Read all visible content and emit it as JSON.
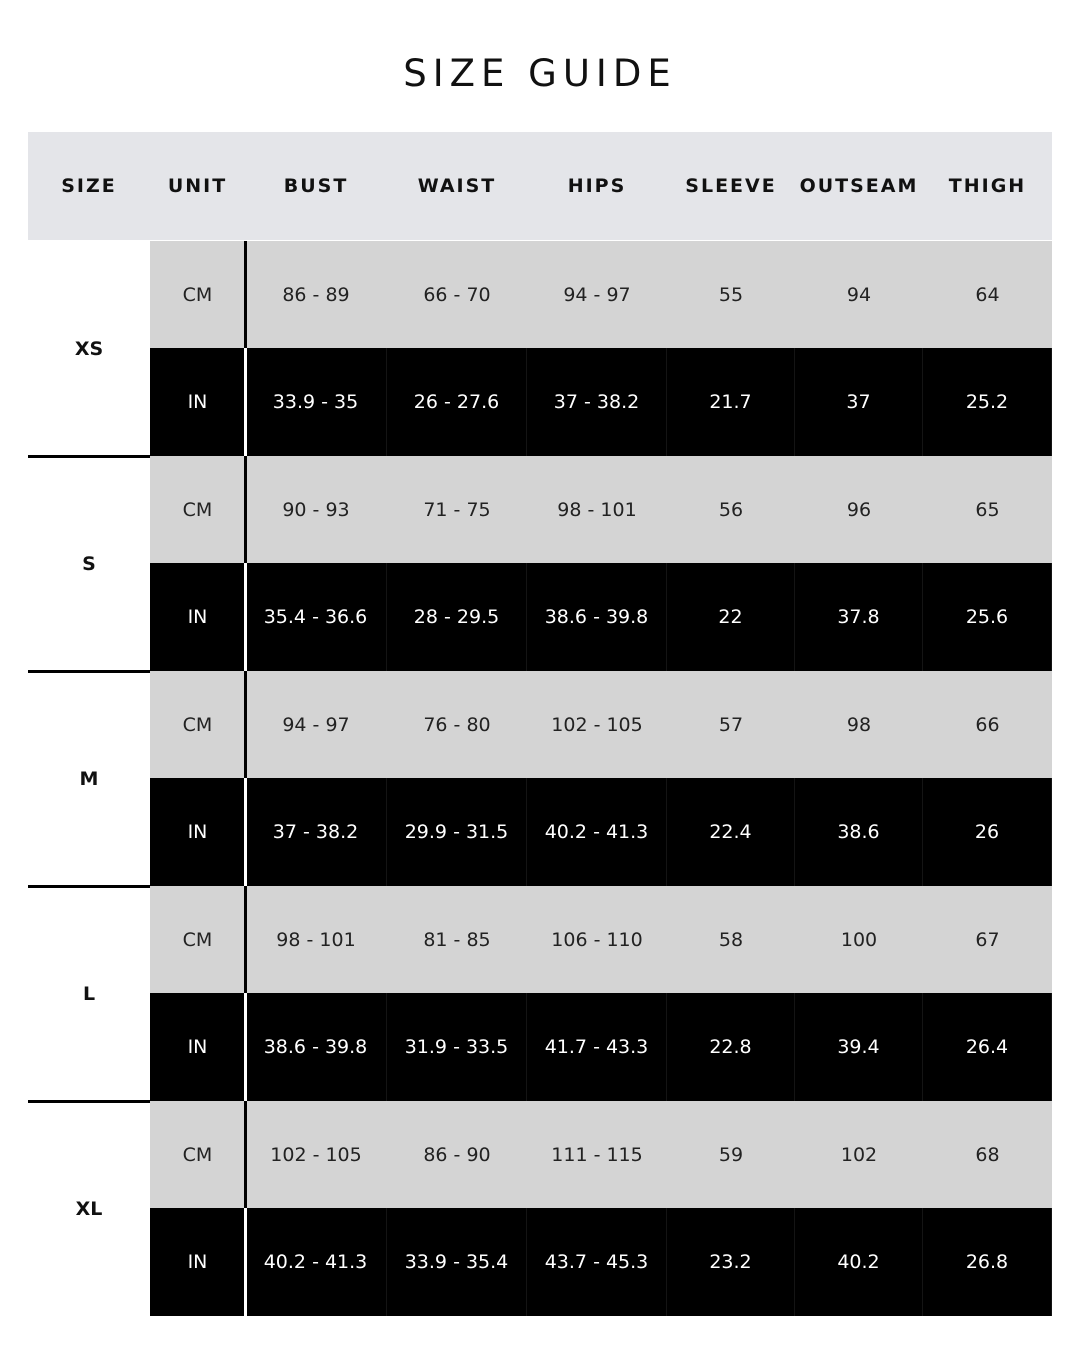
{
  "title": "SIZE GUIDE",
  "columns": [
    "SIZE",
    "UNIT",
    "BUST",
    "WAIST",
    "HIPS",
    "SLEEVE",
    "OUTSEAM",
    "THIGH"
  ],
  "sizes": [
    {
      "size": "XS",
      "rows": [
        {
          "unit": "CM",
          "values": [
            "86 - 89",
            "66 - 70",
            "94 - 97",
            "55",
            "94",
            "64"
          ]
        },
        {
          "unit": "IN",
          "values": [
            "33.9 - 35",
            "26 - 27.6",
            "37 - 38.2",
            "21.7",
            "37",
            "25.2"
          ]
        }
      ]
    },
    {
      "size": "S",
      "rows": [
        {
          "unit": "CM",
          "values": [
            "90 - 93",
            "71 - 75",
            "98 - 101",
            "56",
            "96",
            "65"
          ]
        },
        {
          "unit": "IN",
          "values": [
            "35.4 - 36.6",
            "28 - 29.5",
            "38.6 - 39.8",
            "22",
            "37.8",
            "25.6"
          ]
        }
      ]
    },
    {
      "size": "M",
      "rows": [
        {
          "unit": "CM",
          "values": [
            "94 - 97",
            "76 - 80",
            "102 - 105",
            "57",
            "98",
            "66"
          ]
        },
        {
          "unit": "IN",
          "values": [
            "37 - 38.2",
            "29.9 - 31.5",
            "40.2 - 41.3",
            "22.4",
            "38.6",
            "26"
          ]
        }
      ]
    },
    {
      "size": "L",
      "rows": [
        {
          "unit": "CM",
          "values": [
            "98 - 101",
            "81 - 85",
            "106 - 110",
            "58",
            "100",
            "67"
          ]
        },
        {
          "unit": "IN",
          "values": [
            "38.6 - 39.8",
            "31.9 - 33.5",
            "41.7 - 43.3",
            "22.8",
            "39.4",
            "26.4"
          ]
        }
      ]
    },
    {
      "size": "XL",
      "rows": [
        {
          "unit": "CM",
          "values": [
            "102 - 105",
            "86 - 90",
            "111 - 115",
            "59",
            "102",
            "68"
          ]
        },
        {
          "unit": "IN",
          "values": [
            "40.2 - 41.3",
            "33.9 - 35.4",
            "43.7 - 45.3",
            "23.2",
            "40.2",
            "26.8"
          ]
        }
      ]
    }
  ],
  "colors": {
    "header_bg": "#e4e5e9",
    "cm_row_bg": "#d4d4d4",
    "in_row_bg": "#000000"
  }
}
